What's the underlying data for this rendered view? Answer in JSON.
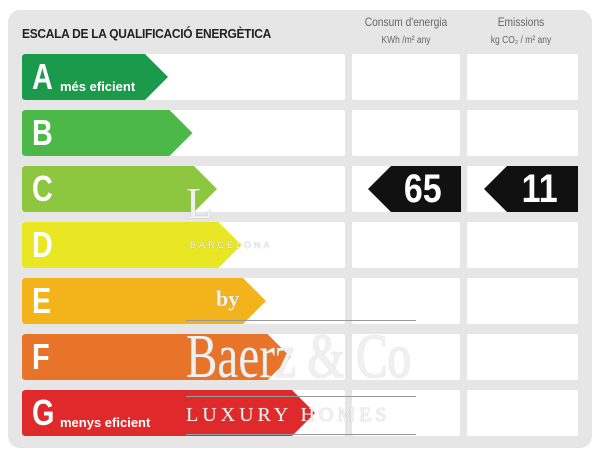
{
  "title": "ESCALA DE LA QUALIFICACIÓ ENERGÈTICA",
  "columns": {
    "energy": {
      "label": "Consum d'energia",
      "unit": "KWh /m² any"
    },
    "emissions": {
      "label": "Emissions",
      "unit": "kg CO₂ / m² any"
    }
  },
  "classes": [
    {
      "letter": "A",
      "caption": "més eficient",
      "color": "#1a9a4a"
    },
    {
      "letter": "B",
      "caption": "",
      "color": "#4cb848"
    },
    {
      "letter": "C",
      "caption": "",
      "color": "#8dc63f"
    },
    {
      "letter": "D",
      "caption": "",
      "color": "#e9e624"
    },
    {
      "letter": "E",
      "caption": "",
      "color": "#f3b31b"
    },
    {
      "letter": "F",
      "caption": "",
      "color": "#e8742a"
    },
    {
      "letter": "G",
      "caption": "menys eficient",
      "color": "#e0292a"
    }
  ],
  "rating": {
    "class": "C",
    "energy_value": "65",
    "emissions_value": "11"
  },
  "watermark": {
    "brand": "Baerz & Co",
    "by": "by",
    "tagline": "LUXURY HOMES",
    "city": "BARCELONA"
  }
}
